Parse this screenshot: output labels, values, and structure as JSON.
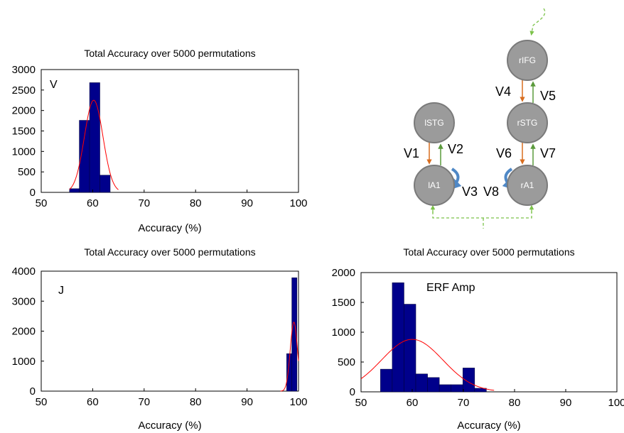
{
  "chart_data": [
    {
      "type": "bar",
      "title": "Total Accuracy over 5000 permutations",
      "panel_label": "V",
      "xlabel": "Accuracy (%)",
      "ylabel": "",
      "xlim": [
        50,
        100
      ],
      "ylim": [
        0,
        3000
      ],
      "xticks": [
        50,
        60,
        70,
        80,
        90,
        100
      ],
      "yticks": [
        0,
        500,
        1000,
        1500,
        2000,
        2500,
        3000
      ],
      "bar_color": "#00008b",
      "fit_color": "#ff0000",
      "bins": [
        {
          "x0": 55.5,
          "x1": 57.4,
          "value": 90
        },
        {
          "x0": 57.4,
          "x1": 59.4,
          "value": 1760
        },
        {
          "x0": 59.4,
          "x1": 61.4,
          "value": 2680
        },
        {
          "x0": 61.4,
          "x1": 63.4,
          "value": 420
        }
      ],
      "fit": {
        "mean": 60.2,
        "sd": 1.8,
        "peak": 2250,
        "x_range": [
          55.5,
          65
        ]
      }
    },
    {
      "type": "bar",
      "title": "Total Accuracy over 5000 permutations",
      "panel_label": "J",
      "xlabel": "Accuracy (%)",
      "ylabel": "",
      "xlim": [
        50,
        100
      ],
      "ylim": [
        0,
        4000
      ],
      "xticks": [
        50,
        60,
        70,
        80,
        90,
        100
      ],
      "yticks": [
        0,
        1000,
        2000,
        3000,
        4000
      ],
      "bar_color": "#00008b",
      "fit_color": "#ff0000",
      "bins": [
        {
          "x0": 97.7,
          "x1": 98.7,
          "value": 1250
        },
        {
          "x0": 98.7,
          "x1": 99.7,
          "value": 3780
        }
      ],
      "fit": {
        "mean": 99.1,
        "sd": 0.7,
        "peak": 2300,
        "x_range": [
          96.5,
          100
        ]
      }
    },
    {
      "type": "bar",
      "title": "Total Accuracy over 5000 permutations",
      "panel_label": "ERF Amp",
      "xlabel": "Accuracy (%)",
      "ylabel": "",
      "xlim": [
        50,
        100
      ],
      "ylim": [
        0,
        2000
      ],
      "xticks": [
        50,
        60,
        70,
        80,
        90,
        100
      ],
      "yticks": [
        0,
        500,
        1000,
        1500,
        2000
      ],
      "bar_color": "#00008b",
      "fit_color": "#ff0000",
      "bins": [
        {
          "x0": 53.8,
          "x1": 56.1,
          "value": 380
        },
        {
          "x0": 56.1,
          "x1": 58.4,
          "value": 1830
        },
        {
          "x0": 58.4,
          "x1": 60.7,
          "value": 1470
        },
        {
          "x0": 60.7,
          "x1": 63.0,
          "value": 300
        },
        {
          "x0": 63.0,
          "x1": 65.3,
          "value": 240
        },
        {
          "x0": 65.3,
          "x1": 67.6,
          "value": 120
        },
        {
          "x0": 67.6,
          "x1": 69.9,
          "value": 120
        },
        {
          "x0": 69.9,
          "x1": 72.2,
          "value": 400
        },
        {
          "x0": 72.2,
          "x1": 74.5,
          "value": 60
        }
      ],
      "fit": {
        "mean": 60.0,
        "sd": 6.0,
        "peak": 880,
        "x_range": [
          50,
          76
        ]
      }
    }
  ],
  "diagram": {
    "nodes": [
      {
        "id": "ifg",
        "label": "rIFG"
      },
      {
        "id": "rstg",
        "label": "rSTG"
      },
      {
        "id": "lstg",
        "label": "lSTG"
      },
      {
        "id": "la1",
        "label": "lA1"
      },
      {
        "id": "ra1",
        "label": "rA1"
      }
    ],
    "connection_labels": [
      "V1",
      "V2",
      "V3",
      "V4",
      "V5",
      "V6",
      "V7",
      "V8"
    ],
    "forward_color": "#5b9a3c",
    "backward_color": "#d86d1f",
    "self_color": "#4f88c6",
    "node_fill": "#9b9b9b",
    "node_stroke": "#7a7a7a",
    "input_color": "#7cc24a"
  }
}
